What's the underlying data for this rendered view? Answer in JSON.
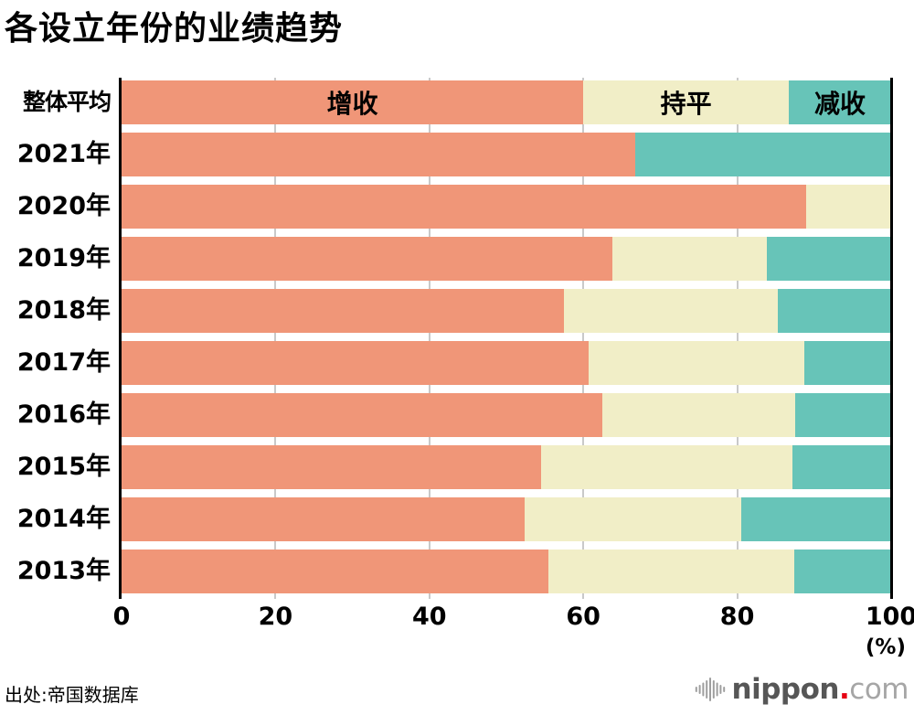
{
  "title": "各设立年份的业绩趋势",
  "source": "出处:帝国数据库",
  "axis": {
    "ticks": [
      0,
      20,
      40,
      60,
      80,
      100
    ],
    "unit_label": "(%)"
  },
  "colors": {
    "increase": "#F09678",
    "flat": "#F1EEC7",
    "decrease": "#67C4B8",
    "gridline": "#C9C9C9",
    "spine": "#000000",
    "logo_gray": "#9e9e9e",
    "logo_red": "#e60012"
  },
  "logo": {
    "name": "nippon",
    "dot": ".",
    "tld": "com"
  },
  "chart_data": {
    "type": "bar",
    "orientation": "horizontal",
    "stacked": true,
    "unit": "%",
    "xlim": [
      0,
      100
    ],
    "grid": true,
    "legend_position": "inside-first-bar",
    "categories": [
      "整体平均",
      "2021年",
      "2020年",
      "2019年",
      "2018年",
      "2017年",
      "2016年",
      "2015年",
      "2014年",
      "2013年"
    ],
    "series": [
      {
        "key": "increase",
        "name": "增收",
        "color": "#F09678",
        "values": [
          60.0,
          66.7,
          88.9,
          63.8,
          57.5,
          60.7,
          62.5,
          54.5,
          52.4,
          55.5
        ]
      },
      {
        "key": "flat",
        "name": "持平",
        "color": "#F1EEC7",
        "values": [
          26.7,
          0.0,
          11.1,
          20.0,
          27.8,
          28.0,
          25.0,
          32.7,
          28.1,
          31.9
        ]
      },
      {
        "key": "decrease",
        "name": "减收",
        "color": "#67C4B8",
        "values": [
          13.3,
          33.3,
          0.0,
          16.2,
          14.7,
          11.3,
          12.5,
          12.8,
          19.5,
          12.6
        ]
      }
    ]
  }
}
